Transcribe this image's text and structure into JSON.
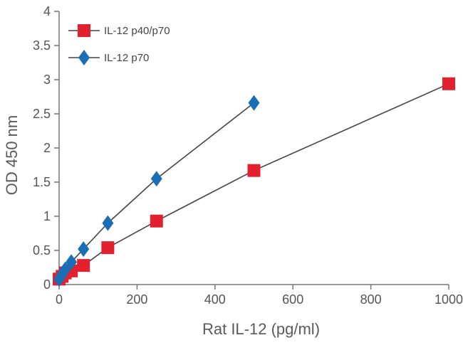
{
  "chart_data": {
    "type": "line",
    "xlabel": "Rat IL-12 (pg/ml)",
    "ylabel": "OD 450 nm",
    "xlim": [
      0,
      1000
    ],
    "ylim": [
      0,
      4
    ],
    "xticks": [
      0,
      200,
      400,
      600,
      800,
      1000
    ],
    "yticks": [
      0,
      0.5,
      1,
      1.5,
      2,
      2.5,
      3,
      3.5,
      4
    ],
    "ytick_labels": [
      "0",
      "0.5",
      "1",
      "1.5",
      "2",
      "2.5",
      "3",
      "3.5",
      "4"
    ],
    "grid": false,
    "legend_position": "top-left",
    "series": [
      {
        "name": "IL-12 p40/p70",
        "color": "#e3202e",
        "marker": "square",
        "x": [
          0,
          7.8,
          15.6,
          31.25,
          62.5,
          125,
          250,
          500,
          1000
        ],
        "y": [
          0.08,
          0.12,
          0.17,
          0.2,
          0.28,
          0.54,
          0.93,
          1.67,
          2.94
        ]
      },
      {
        "name": "IL-12 p70",
        "color": "#1a6eb5",
        "marker": "diamond",
        "x": [
          0,
          7.8,
          15.6,
          31.25,
          62.5,
          125,
          250,
          500
        ],
        "y": [
          0.08,
          0.15,
          0.22,
          0.33,
          0.52,
          0.9,
          1.55,
          2.66
        ]
      }
    ]
  }
}
